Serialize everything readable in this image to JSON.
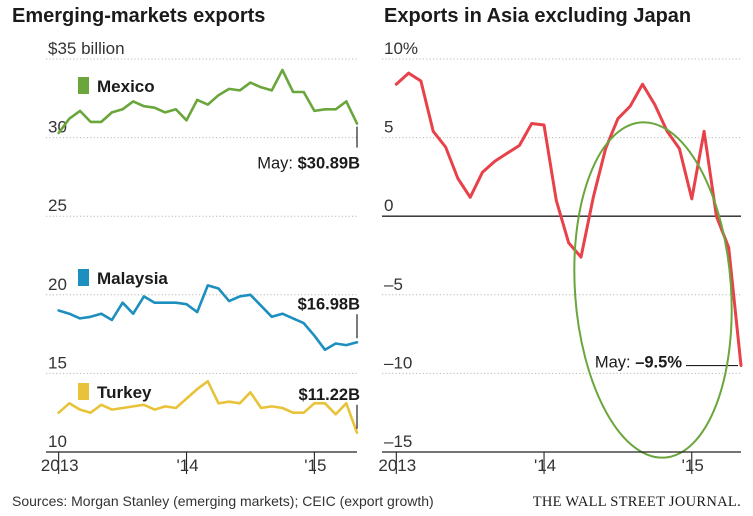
{
  "chart_data": [
    {
      "type": "line",
      "title": "Emerging-markets exports",
      "ylabel": "$35 billion",
      "ylim": [
        10,
        35
      ],
      "yticks": [
        {
          "value": 35,
          "label": "$35 billion"
        },
        {
          "value": 30,
          "label": "30"
        },
        {
          "value": 25,
          "label": "25"
        },
        {
          "value": 20,
          "label": "20"
        },
        {
          "value": 15,
          "label": "15"
        },
        {
          "value": 10,
          "label": "10"
        }
      ],
      "xlim": [
        "2012-12",
        "2015-05"
      ],
      "xticks": [
        {
          "date": "2013-01",
          "label": "2013"
        },
        {
          "date": "2014-01",
          "label": "'14"
        },
        {
          "date": "2015-01",
          "label": "'15"
        }
      ],
      "x": [
        "2013-01",
        "2013-02",
        "2013-03",
        "2013-04",
        "2013-05",
        "2013-06",
        "2013-07",
        "2013-08",
        "2013-09",
        "2013-10",
        "2013-11",
        "2013-12",
        "2014-01",
        "2014-02",
        "2014-03",
        "2014-04",
        "2014-05",
        "2014-06",
        "2014-07",
        "2014-08",
        "2014-09",
        "2014-10",
        "2014-11",
        "2014-12",
        "2015-01",
        "2015-02",
        "2015-03",
        "2015-04",
        "2015-05"
      ],
      "series": [
        {
          "name": "Mexico",
          "color": "#6aa63c",
          "values": [
            30.3,
            31.2,
            31.7,
            31.0,
            31.0,
            31.6,
            31.8,
            32.3,
            32.0,
            31.9,
            31.6,
            31.8,
            31.1,
            32.4,
            32.1,
            32.7,
            33.1,
            33.0,
            33.5,
            33.2,
            33.0,
            34.3,
            32.9,
            32.9,
            31.7,
            31.8,
            31.8,
            32.3,
            30.89
          ]
        },
        {
          "name": "Malaysia",
          "color": "#1d8fbf",
          "values": [
            19.0,
            18.8,
            18.5,
            18.6,
            18.8,
            18.4,
            19.5,
            18.8,
            19.9,
            19.5,
            19.5,
            19.5,
            19.4,
            18.9,
            20.6,
            20.4,
            19.6,
            19.9,
            20.0,
            19.3,
            18.6,
            18.8,
            18.5,
            18.2,
            17.4,
            16.5,
            16.9,
            16.8,
            16.98
          ]
        },
        {
          "name": "Turkey",
          "color": "#e8c33a",
          "values": [
            12.5,
            13.1,
            12.7,
            12.5,
            13.0,
            12.7,
            12.8,
            12.9,
            13.0,
            12.7,
            12.9,
            12.8,
            13.4,
            14.0,
            14.5,
            13.1,
            13.2,
            13.1,
            13.8,
            12.8,
            12.9,
            12.8,
            12.5,
            12.5,
            13.1,
            13.1,
            12.4,
            13.1,
            11.22
          ]
        }
      ],
      "annotations": [
        {
          "series": "Mexico",
          "prefix": "May: ",
          "value_label": "$30.89B"
        },
        {
          "series": "Malaysia",
          "value_label": "$16.98B"
        },
        {
          "series": "Turkey",
          "value_label": "$11.22B"
        }
      ]
    },
    {
      "type": "line",
      "title": "Exports in Asia excluding Japan",
      "ylim": [
        -15,
        10
      ],
      "yticks": [
        {
          "value": 10,
          "label": "10%"
        },
        {
          "value": 5,
          "label": "5"
        },
        {
          "value": 0,
          "label": "0"
        },
        {
          "value": -5,
          "label": "–5"
        },
        {
          "value": -10,
          "label": "–10"
        },
        {
          "value": -15,
          "label": "–15"
        }
      ],
      "xlim": [
        "2012-12",
        "2015-05"
      ],
      "xticks": [
        {
          "date": "2013-01",
          "label": "2013"
        },
        {
          "date": "2014-01",
          "label": "'14"
        },
        {
          "date": "2015-01",
          "label": "'15"
        }
      ],
      "x": [
        "2013-01",
        "2013-02",
        "2013-03",
        "2013-04",
        "2013-05",
        "2013-06",
        "2013-07",
        "2013-08",
        "2013-09",
        "2013-10",
        "2013-11",
        "2013-12",
        "2014-01",
        "2014-02",
        "2014-03",
        "2014-04",
        "2014-05",
        "2014-06",
        "2014-07",
        "2014-08",
        "2014-09",
        "2014-10",
        "2014-11",
        "2014-12",
        "2015-01",
        "2015-02",
        "2015-03",
        "2015-04",
        "2015-05"
      ],
      "series": [
        {
          "color": "#e8414a",
          "values": [
            8.4,
            9.1,
            8.6,
            5.4,
            4.4,
            2.4,
            1.2,
            2.8,
            3.5,
            4.0,
            4.5,
            5.9,
            5.8,
            1.0,
            -1.7,
            -2.6,
            1.2,
            4.3,
            6.2,
            7.0,
            8.4,
            7.1,
            5.4,
            4.3,
            1.1,
            5.4,
            0.0,
            -2.0,
            -9.5
          ]
        }
      ],
      "annotations": [
        {
          "prefix": "May: ",
          "value_label": "–9.5%"
        }
      ],
      "highlight": {
        "shape": "ellipse",
        "color": "#6aa63c"
      }
    }
  ],
  "footer": {
    "sources": "Sources: Morgan Stanley (emerging markets); CEIC (export growth)",
    "credit": "THE WALL STREET JOURNAL."
  }
}
